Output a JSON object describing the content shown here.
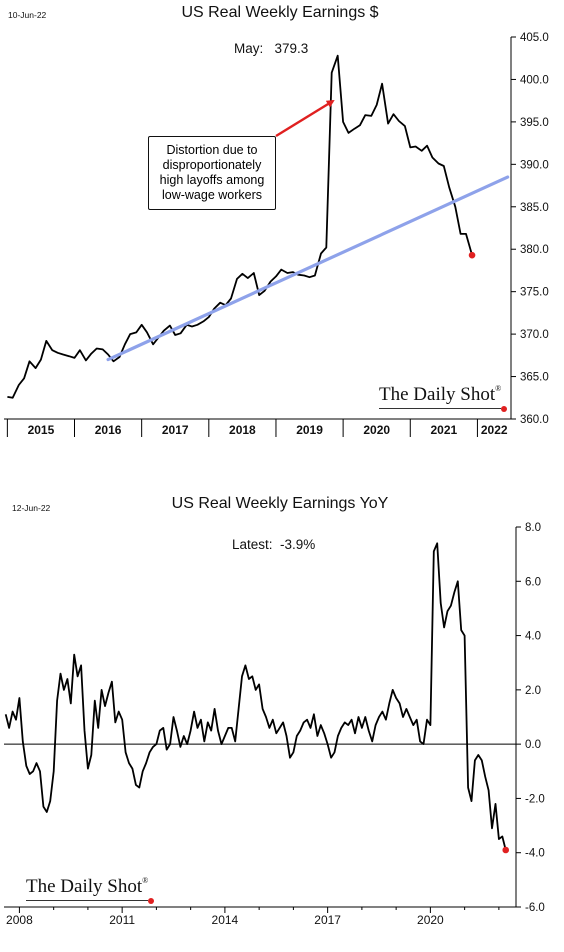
{
  "colors": {
    "line": "#000000",
    "trend": "#8ea2ea",
    "arrow": "#e02020",
    "last_point": "#e02020",
    "axis": "#000000"
  },
  "top": {
    "date": "10-Jun-22",
    "title": "US Real Weekly Earnings $",
    "latest_label": "May:",
    "latest_value": "379.3",
    "annotation": "Distortion due to disproportionately high layoffs among low-wage workers",
    "logo": "The Daily Shot",
    "logo_mark": "®"
  },
  "bottom": {
    "date": "12-Jun-22",
    "title": "US Real Weekly Earnings YoY",
    "latest_label": "Latest:",
    "latest_value": "-3.9%",
    "logo": "The Daily Shot",
    "logo_mark": "®"
  },
  "chart_data": [
    {
      "type": "line",
      "title": "US Real Weekly Earnings $",
      "xlabel": "",
      "ylabel": "",
      "x_range": [
        2014.95,
        2022.5
      ],
      "ylim": [
        360,
        405
      ],
      "y_ticks": [
        "360.0",
        "365.0",
        "370.0",
        "375.0",
        "380.0",
        "385.0",
        "390.0",
        "395.0",
        "400.0",
        "405.0"
      ],
      "x_ticks": [
        "2015",
        "2016",
        "2017",
        "2018",
        "2019",
        "2020",
        "2021",
        "2022"
      ],
      "grid": false,
      "series": [
        {
          "role": "data",
          "points": [
            [
              2015.0,
              362.6
            ],
            [
              2015.08,
              362.5
            ],
            [
              2015.17,
              364.0
            ],
            [
              2015.25,
              364.8
            ],
            [
              2015.33,
              366.8
            ],
            [
              2015.42,
              366.0
            ],
            [
              2015.5,
              367.0
            ],
            [
              2015.58,
              369.2
            ],
            [
              2015.67,
              368.1
            ],
            [
              2015.75,
              367.8
            ],
            [
              2015.83,
              367.6
            ],
            [
              2015.92,
              367.4
            ],
            [
              2016.0,
              367.2
            ],
            [
              2016.08,
              368.1
            ],
            [
              2016.17,
              366.9
            ],
            [
              2016.25,
              367.7
            ],
            [
              2016.33,
              368.3
            ],
            [
              2016.42,
              368.2
            ],
            [
              2016.5,
              367.6
            ],
            [
              2016.58,
              366.8
            ],
            [
              2016.67,
              367.3
            ],
            [
              2016.75,
              368.8
            ],
            [
              2016.83,
              370.0
            ],
            [
              2016.92,
              370.2
            ],
            [
              2017.0,
              371.1
            ],
            [
              2017.08,
              370.2
            ],
            [
              2017.17,
              368.8
            ],
            [
              2017.25,
              369.6
            ],
            [
              2017.33,
              370.4
            ],
            [
              2017.42,
              371.0
            ],
            [
              2017.5,
              369.9
            ],
            [
              2017.58,
              370.1
            ],
            [
              2017.67,
              371.1
            ],
            [
              2017.75,
              370.9
            ],
            [
              2017.83,
              371.1
            ],
            [
              2017.92,
              371.5
            ],
            [
              2018.0,
              372.0
            ],
            [
              2018.08,
              373.0
            ],
            [
              2018.17,
              373.7
            ],
            [
              2018.25,
              373.4
            ],
            [
              2018.33,
              374.2
            ],
            [
              2018.42,
              376.5
            ],
            [
              2018.5,
              377.1
            ],
            [
              2018.58,
              376.6
            ],
            [
              2018.67,
              377.2
            ],
            [
              2018.75,
              374.6
            ],
            [
              2018.83,
              375.1
            ],
            [
              2018.92,
              376.2
            ],
            [
              2019.0,
              376.8
            ],
            [
              2019.08,
              377.6
            ],
            [
              2019.17,
              377.2
            ],
            [
              2019.25,
              377.3
            ],
            [
              2019.33,
              377.0
            ],
            [
              2019.42,
              376.9
            ],
            [
              2019.5,
              376.7
            ],
            [
              2019.58,
              376.9
            ],
            [
              2019.67,
              379.5
            ],
            [
              2019.75,
              380.2
            ],
            [
              2019.83,
              400.8
            ],
            [
              2019.92,
              402.8
            ],
            [
              2020.0,
              395.0
            ],
            [
              2020.08,
              393.7
            ],
            [
              2020.17,
              394.2
            ],
            [
              2020.25,
              394.6
            ],
            [
              2020.33,
              395.8
            ],
            [
              2020.42,
              395.7
            ],
            [
              2020.5,
              397.0
            ],
            [
              2020.58,
              399.5
            ],
            [
              2020.67,
              394.8
            ],
            [
              2020.75,
              395.9
            ],
            [
              2020.83,
              395.1
            ],
            [
              2020.92,
              394.5
            ],
            [
              2021.0,
              392.0
            ],
            [
              2021.08,
              392.1
            ],
            [
              2021.17,
              391.6
            ],
            [
              2021.25,
              392.2
            ],
            [
              2021.33,
              390.8
            ],
            [
              2021.42,
              390.1
            ],
            [
              2021.5,
              389.8
            ],
            [
              2021.58,
              387.3
            ],
            [
              2021.67,
              385.0
            ],
            [
              2021.75,
              381.8
            ],
            [
              2021.83,
              381.8
            ],
            [
              2021.92,
              379.3
            ]
          ]
        },
        {
          "role": "trend",
          "points": [
            [
              2016.5,
              367.0
            ],
            [
              2022.45,
              388.5
            ]
          ]
        }
      ]
    },
    {
      "type": "line",
      "title": "US Real Weekly Earnings YoY",
      "xlabel": "",
      "ylabel": "",
      "x_range": [
        2007.55,
        2022.5
      ],
      "ylim": [
        -6,
        8
      ],
      "y_ticks": [
        "-6.0",
        "-4.0",
        "-2.0",
        "0.0",
        "2.0",
        "4.0",
        "6.0",
        "8.0"
      ],
      "x_ticks": [
        "2008",
        "2011",
        "2014",
        "2017",
        "2020"
      ],
      "zero_line": true,
      "grid": false,
      "series": [
        {
          "role": "data",
          "points": [
            [
              2007.6,
              1.1
            ],
            [
              2007.7,
              0.6
            ],
            [
              2007.8,
              1.2
            ],
            [
              2007.9,
              0.9
            ],
            [
              2008.0,
              1.7
            ],
            [
              2008.1,
              0.1
            ],
            [
              2008.2,
              -0.8
            ],
            [
              2008.3,
              -1.1
            ],
            [
              2008.4,
              -1.0
            ],
            [
              2008.5,
              -0.7
            ],
            [
              2008.6,
              -1.0
            ],
            [
              2008.7,
              -2.3
            ],
            [
              2008.8,
              -2.5
            ],
            [
              2008.9,
              -2.1
            ],
            [
              2009.0,
              -1.0
            ],
            [
              2009.1,
              1.6
            ],
            [
              2009.2,
              2.6
            ],
            [
              2009.3,
              2.0
            ],
            [
              2009.4,
              2.4
            ],
            [
              2009.5,
              1.5
            ],
            [
              2009.6,
              3.3
            ],
            [
              2009.7,
              2.5
            ],
            [
              2009.8,
              2.9
            ],
            [
              2009.9,
              0.5
            ],
            [
              2010.0,
              -0.9
            ],
            [
              2010.1,
              -0.4
            ],
            [
              2010.2,
              1.6
            ],
            [
              2010.3,
              0.6
            ],
            [
              2010.4,
              2.0
            ],
            [
              2010.5,
              1.4
            ],
            [
              2010.6,
              1.9
            ],
            [
              2010.7,
              2.3
            ],
            [
              2010.8,
              0.8
            ],
            [
              2010.9,
              1.2
            ],
            [
              2011.0,
              0.9
            ],
            [
              2011.1,
              -0.3
            ],
            [
              2011.2,
              -0.7
            ],
            [
              2011.3,
              -0.9
            ],
            [
              2011.4,
              -1.5
            ],
            [
              2011.5,
              -1.6
            ],
            [
              2011.6,
              -1.0
            ],
            [
              2011.7,
              -0.7
            ],
            [
              2011.8,
              -0.3
            ],
            [
              2011.9,
              -0.1
            ],
            [
              2012.0,
              0.0
            ],
            [
              2012.1,
              0.5
            ],
            [
              2012.2,
              0.6
            ],
            [
              2012.3,
              -0.2
            ],
            [
              2012.4,
              0.0
            ],
            [
              2012.5,
              1.0
            ],
            [
              2012.6,
              0.5
            ],
            [
              2012.7,
              -0.1
            ],
            [
              2012.8,
              0.3
            ],
            [
              2012.9,
              0.0
            ],
            [
              2013.0,
              0.5
            ],
            [
              2013.1,
              1.2
            ],
            [
              2013.2,
              0.6
            ],
            [
              2013.3,
              0.9
            ],
            [
              2013.4,
              0.1
            ],
            [
              2013.5,
              0.8
            ],
            [
              2013.6,
              0.5
            ],
            [
              2013.7,
              1.3
            ],
            [
              2013.8,
              0.5
            ],
            [
              2013.9,
              0.0
            ],
            [
              2014.0,
              0.3
            ],
            [
              2014.1,
              0.6
            ],
            [
              2014.2,
              0.6
            ],
            [
              2014.3,
              0.1
            ],
            [
              2014.4,
              1.3
            ],
            [
              2014.5,
              2.5
            ],
            [
              2014.6,
              2.9
            ],
            [
              2014.7,
              2.4
            ],
            [
              2014.8,
              2.5
            ],
            [
              2014.9,
              2.0
            ],
            [
              2015.0,
              2.2
            ],
            [
              2015.1,
              1.3
            ],
            [
              2015.2,
              1.0
            ],
            [
              2015.3,
              0.6
            ],
            [
              2015.4,
              0.9
            ],
            [
              2015.5,
              0.4
            ],
            [
              2015.6,
              0.6
            ],
            [
              2015.7,
              0.8
            ],
            [
              2015.8,
              0.3
            ],
            [
              2015.9,
              -0.5
            ],
            [
              2016.0,
              -0.3
            ],
            [
              2016.1,
              0.3
            ],
            [
              2016.2,
              0.5
            ],
            [
              2016.3,
              0.8
            ],
            [
              2016.4,
              0.9
            ],
            [
              2016.5,
              0.6
            ],
            [
              2016.6,
              1.1
            ],
            [
              2016.7,
              0.3
            ],
            [
              2016.8,
              0.7
            ],
            [
              2016.9,
              0.4
            ],
            [
              2017.0,
              0.0
            ],
            [
              2017.1,
              -0.5
            ],
            [
              2017.2,
              -0.3
            ],
            [
              2017.3,
              0.3
            ],
            [
              2017.4,
              0.6
            ],
            [
              2017.5,
              0.8
            ],
            [
              2017.6,
              0.7
            ],
            [
              2017.7,
              0.9
            ],
            [
              2017.8,
              0.4
            ],
            [
              2017.9,
              1.0
            ],
            [
              2018.0,
              0.6
            ],
            [
              2018.1,
              1.0
            ],
            [
              2018.2,
              0.5
            ],
            [
              2018.3,
              0.1
            ],
            [
              2018.4,
              0.7
            ],
            [
              2018.5,
              1.0
            ],
            [
              2018.6,
              1.2
            ],
            [
              2018.7,
              0.9
            ],
            [
              2018.8,
              1.5
            ],
            [
              2018.9,
              2.0
            ],
            [
              2019.0,
              1.7
            ],
            [
              2019.1,
              1.5
            ],
            [
              2019.2,
              1.0
            ],
            [
              2019.3,
              1.3
            ],
            [
              2019.4,
              1.0
            ],
            [
              2019.5,
              0.7
            ],
            [
              2019.6,
              0.9
            ],
            [
              2019.7,
              0.1
            ],
            [
              2019.8,
              0.0
            ],
            [
              2019.9,
              0.9
            ],
            [
              2020.0,
              0.7
            ],
            [
              2020.1,
              7.1
            ],
            [
              2020.2,
              7.4
            ],
            [
              2020.3,
              5.2
            ],
            [
              2020.4,
              4.3
            ],
            [
              2020.5,
              4.9
            ],
            [
              2020.6,
              5.1
            ],
            [
              2020.7,
              5.6
            ],
            [
              2020.8,
              6.0
            ],
            [
              2020.9,
              4.2
            ],
            [
              2021.0,
              4.0
            ],
            [
              2021.1,
              -1.6
            ],
            [
              2021.2,
              -2.1
            ],
            [
              2021.3,
              -0.6
            ],
            [
              2021.4,
              -0.4
            ],
            [
              2021.5,
              -0.6
            ],
            [
              2021.6,
              -1.2
            ],
            [
              2021.7,
              -1.7
            ],
            [
              2021.8,
              -3.1
            ],
            [
              2021.9,
              -2.2
            ],
            [
              2022.0,
              -3.5
            ],
            [
              2022.1,
              -3.4
            ],
            [
              2022.2,
              -3.9
            ]
          ]
        }
      ]
    }
  ]
}
